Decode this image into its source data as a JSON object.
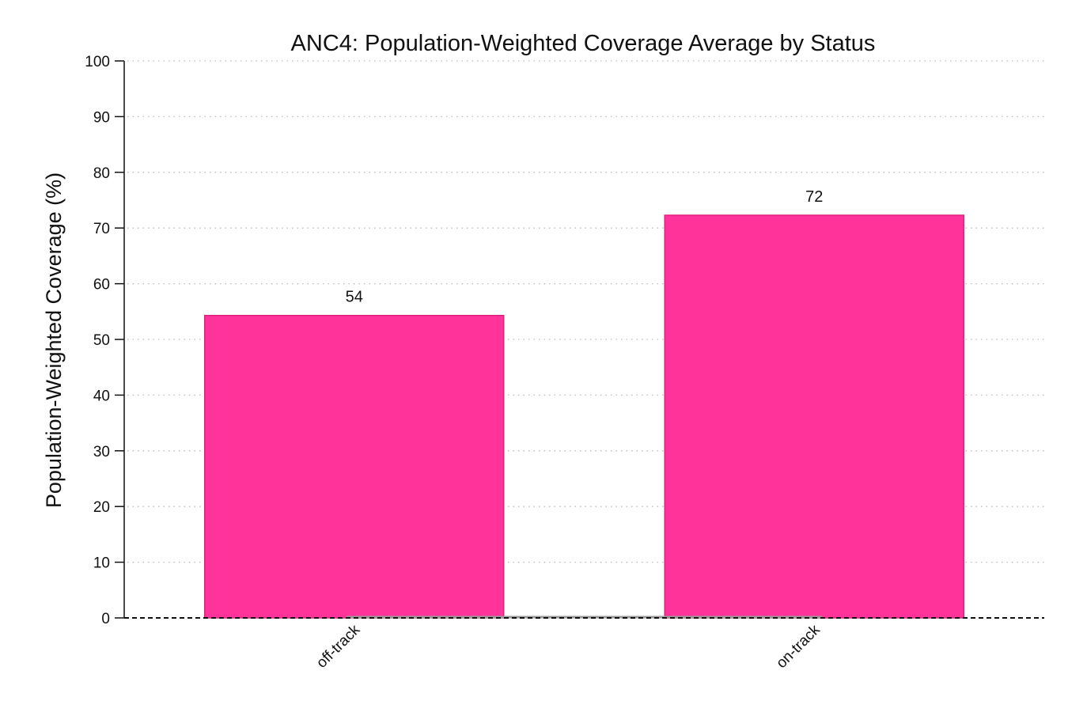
{
  "chart_data": {
    "type": "bar",
    "title": "ANC4: Population-Weighted Coverage Average by Status",
    "xlabel": "",
    "ylabel": "Population-Weighted Coverage (%)",
    "categories": [
      "off-track",
      "on-track"
    ],
    "values": [
      54.3,
      72.3
    ],
    "value_labels": [
      "54",
      "72"
    ],
    "ylim": [
      0,
      100
    ],
    "yticks": [
      0,
      10,
      20,
      30,
      40,
      50,
      60,
      70,
      80,
      90,
      100
    ],
    "ytick_labels": [
      "0",
      "10",
      "20",
      "30",
      "40",
      "50",
      "60",
      "70",
      "80",
      "90",
      "100"
    ],
    "grid": true,
    "grid_style": "dotted",
    "baseline_style": "dashed",
    "legend": "none",
    "colors": {
      "bar_fill": "#ff3399",
      "bar_edge": "#e0207f",
      "grid": "#bbbbbb",
      "axis": "#111111"
    }
  }
}
